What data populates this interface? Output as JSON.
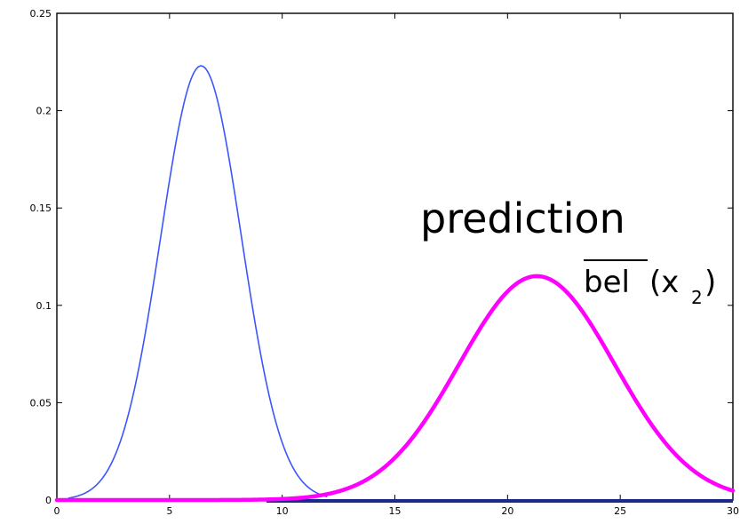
{
  "chart_data": {
    "type": "line",
    "title": "",
    "xlabel": "",
    "ylabel": "",
    "xlim": [
      0,
      30
    ],
    "ylim": [
      0,
      0.25
    ],
    "grid": false,
    "x_ticks": [
      0,
      5,
      10,
      15,
      20,
      25,
      30
    ],
    "x_tick_labels": [
      "0",
      "5",
      "10",
      "15",
      "20",
      "25",
      "30"
    ],
    "y_ticks": [
      0,
      0.05,
      0.1,
      0.15,
      0.2,
      0.25
    ],
    "y_tick_labels": [
      "0",
      "0.05",
      "0.1",
      "0.15",
      "0.2",
      "0.25"
    ],
    "series": [
      {
        "color": "#3b55ff",
        "distribution": "gaussian",
        "mean": 6.4,
        "peak": 0.223,
        "stddev": 1.79,
        "x_range": [
          0.5,
          12
        ]
      },
      {
        "color": "#ff00ff",
        "distribution": "gaussian",
        "mean": 21.3,
        "peak": 0.115,
        "stddev": 3.45,
        "x_range": [
          0,
          30
        ]
      }
    ],
    "baseline_segment": {
      "color": "#1a2a8a",
      "x_range": [
        9.3,
        30
      ],
      "y": 0
    },
    "annotation": {
      "line1": "prediction",
      "overbar_text": "bel",
      "open": "(x",
      "subscript": "2",
      "close": ")"
    }
  }
}
